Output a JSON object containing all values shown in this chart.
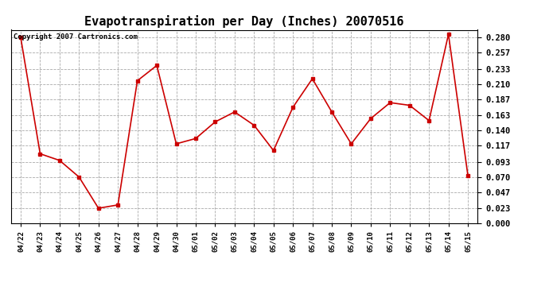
{
  "title": "Evapotranspiration per Day (Inches) 20070516",
  "copyright_text": "Copyright 2007 Cartronics.com",
  "dates": [
    "04/22",
    "04/23",
    "04/24",
    "04/25",
    "04/26",
    "04/27",
    "04/28",
    "04/29",
    "04/30",
    "05/01",
    "05/02",
    "05/03",
    "05/04",
    "05/05",
    "05/06",
    "05/07",
    "05/08",
    "05/09",
    "05/10",
    "05/11",
    "05/12",
    "05/13",
    "05/14",
    "05/15"
  ],
  "values": [
    0.28,
    0.105,
    0.095,
    0.07,
    0.023,
    0.028,
    0.215,
    0.238,
    0.12,
    0.128,
    0.153,
    0.168,
    0.148,
    0.11,
    0.175,
    0.218,
    0.168,
    0.12,
    0.158,
    0.182,
    0.178,
    0.155,
    0.285,
    0.072
  ],
  "line_color": "#cc0000",
  "marker": "s",
  "marker_size": 3,
  "background_color": "#ffffff",
  "plot_bg_color": "#ffffff",
  "grid_color": "#aaaaaa",
  "ylim": [
    0.0,
    0.2917
  ],
  "yticks": [
    0.0,
    0.023,
    0.047,
    0.07,
    0.093,
    0.117,
    0.14,
    0.163,
    0.187,
    0.21,
    0.233,
    0.257,
    0.28
  ],
  "title_fontsize": 11,
  "copyright_fontsize": 6.5,
  "tick_fontsize": 7.5,
  "xtick_fontsize": 6.5
}
